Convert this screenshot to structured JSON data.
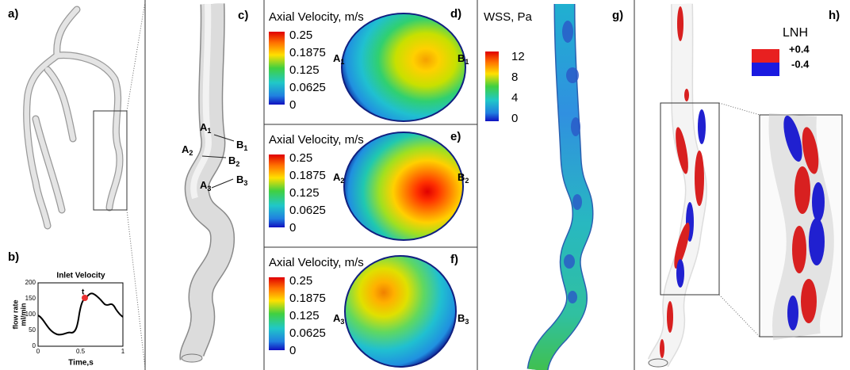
{
  "panels": {
    "a": {
      "label": "a)"
    },
    "b": {
      "label": "b)",
      "title": "Inlet Velocity",
      "y_label_1": "flow rate",
      "y_label_2": "ml/min",
      "x_label": "Time,s",
      "yticks": [
        "200",
        "150",
        "100",
        "50",
        "0"
      ],
      "xticks": [
        "0",
        "0.5",
        "1"
      ],
      "marker": "t"
    },
    "c": {
      "label": "c)",
      "sections": [
        {
          "a": "A",
          "a_sub": "1",
          "b": "B",
          "b_sub": "1"
        },
        {
          "a": "A",
          "a_sub": "2",
          "b": "B",
          "b_sub": "2"
        },
        {
          "a": "A",
          "a_sub": "3",
          "b": "B",
          "b_sub": "3"
        }
      ]
    },
    "velocity": [
      {
        "label": "d)",
        "colorbar_title": "Axial Velocity, m/s",
        "ticks": [
          "0.25",
          "0.1875",
          "0.125",
          "0.0625",
          "0"
        ],
        "left": "A",
        "left_sub": "1",
        "right": "B",
        "right_sub": "1"
      },
      {
        "label": "e)",
        "colorbar_title": "Axial Velocity, m/s",
        "ticks": [
          "0.25",
          "0.1875",
          "0.125",
          "0.0625",
          "0"
        ],
        "left": "A",
        "left_sub": "2",
        "right": "B",
        "right_sub": "2"
      },
      {
        "label": "f)",
        "colorbar_title": "Axial Velocity, m/s",
        "ticks": [
          "0.25",
          "0.1875",
          "0.125",
          "0.0625",
          "0"
        ],
        "left": "A",
        "left_sub": "3",
        "right": "B",
        "right_sub": "3"
      }
    ],
    "g": {
      "label": "g)",
      "colorbar_title": "WSS, Pa",
      "ticks": [
        "12",
        "8",
        "4",
        "0"
      ]
    },
    "h": {
      "label": "h)",
      "legend_title": "LNH",
      "legend_pos": "+0.4",
      "legend_neg": "-0.4"
    }
  }
}
